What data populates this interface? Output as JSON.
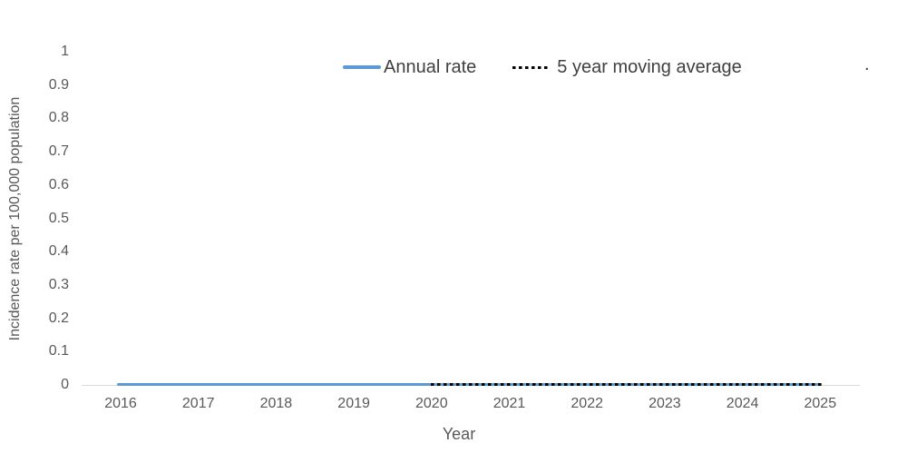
{
  "chart_data": {
    "type": "line",
    "title": "",
    "xlabel": "Year",
    "ylabel": "Incidence rate per 100,000 population",
    "xticks": [
      "2016",
      "2017",
      "2018",
      "2019",
      "2020",
      "2021",
      "2022",
      "2023",
      "2024",
      "2025"
    ],
    "yticks": [
      "0",
      "0.1",
      "0.2",
      "0.3",
      "0.4",
      "0.5",
      "0.6",
      "0.7",
      "0.8",
      "0.9",
      "1"
    ],
    "ylim": [
      0,
      1
    ],
    "grid": false,
    "legend_position": "top-center",
    "series": [
      {
        "name": "Annual rate",
        "style": "solid",
        "color": "#5B9BD5",
        "x": [
          2016,
          2017,
          2018,
          2019,
          2020,
          2021,
          2022,
          2023,
          2024,
          2025
        ],
        "values": [
          0,
          0,
          0,
          0,
          0,
          0,
          0,
          0,
          0,
          0
        ]
      },
      {
        "name": "5 year moving average",
        "style": "dotted",
        "color": "#000000",
        "x": [
          2020,
          2021,
          2022,
          2023,
          2024,
          2025
        ],
        "values": [
          0,
          0,
          0,
          0,
          0,
          0
        ]
      }
    ],
    "annotations": [
      "."
    ]
  },
  "legend": {
    "items": [
      {
        "label": "Annual rate",
        "swatch": "solid-line",
        "color": "#5B9BD5"
      },
      {
        "label": "5 year moving average",
        "swatch": "dotted-line",
        "color": "#000000"
      }
    ],
    "stray_text": "."
  },
  "colors": {
    "background": "#FFFFFF",
    "axis_line": "#D9D9D9",
    "tick_label": "#595959",
    "axis_title": "#595959",
    "legend_text": "#404040",
    "annual_rate_line": "#5B9BD5",
    "moving_average_line": "#000000"
  }
}
